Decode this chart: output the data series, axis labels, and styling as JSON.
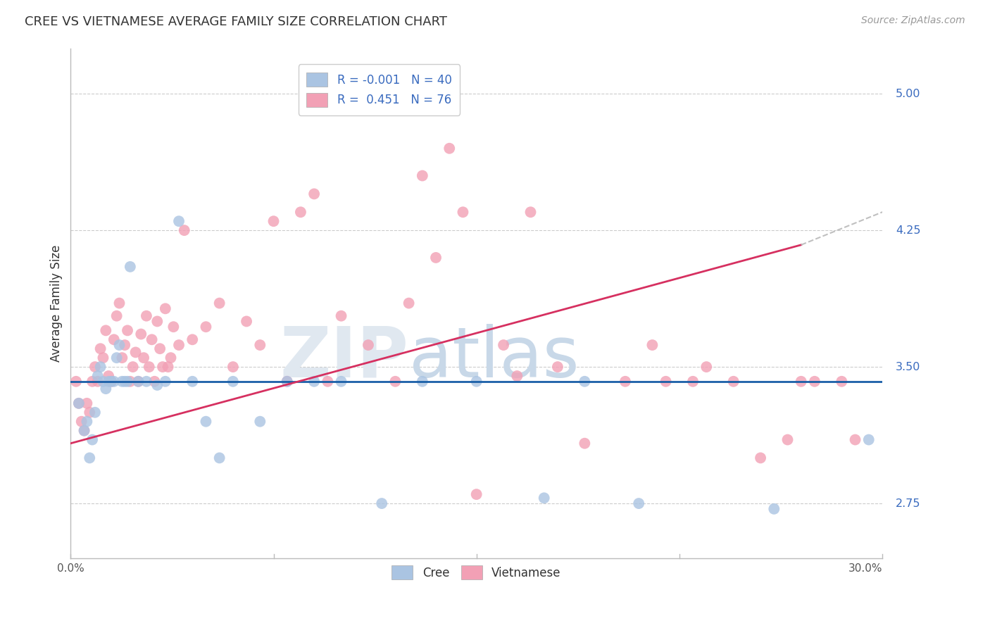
{
  "title": "CREE VS VIETNAMESE AVERAGE FAMILY SIZE CORRELATION CHART",
  "source": "Source: ZipAtlas.com",
  "ylabel": "Average Family Size",
  "yticks": [
    2.75,
    3.5,
    4.25,
    5.0
  ],
  "xlim": [
    0.0,
    30.0
  ],
  "ylim": [
    2.45,
    5.25
  ],
  "cree_color": "#aac4e2",
  "viet_color": "#f2a0b5",
  "cree_line_color": "#1a5fa8",
  "viet_line_color": "#d63060",
  "cree_R": -0.001,
  "cree_N": 40,
  "viet_R": 0.451,
  "viet_N": 76,
  "cree_x": [
    0.3,
    0.5,
    0.6,
    0.7,
    0.8,
    0.9,
    1.0,
    1.1,
    1.2,
    1.3,
    1.4,
    1.5,
    1.6,
    1.7,
    1.8,
    1.9,
    2.0,
    2.1,
    2.2,
    2.5,
    2.8,
    3.2,
    3.5,
    4.0,
    4.5,
    5.0,
    5.5,
    6.0,
    7.0,
    8.0,
    9.0,
    10.0,
    11.5,
    13.0,
    15.0,
    17.5,
    19.0,
    21.0,
    26.0,
    29.5
  ],
  "cree_y": [
    3.3,
    3.15,
    3.2,
    3.0,
    3.1,
    3.25,
    3.45,
    3.5,
    3.42,
    3.38,
    3.42,
    3.42,
    3.42,
    3.55,
    3.62,
    3.42,
    3.42,
    3.42,
    4.05,
    3.42,
    3.42,
    3.4,
    3.42,
    4.3,
    3.42,
    3.2,
    3.0,
    3.42,
    3.2,
    3.42,
    3.42,
    3.42,
    2.75,
    3.42,
    3.42,
    2.78,
    3.42,
    2.75,
    2.72,
    3.1
  ],
  "viet_x": [
    0.2,
    0.3,
    0.4,
    0.5,
    0.6,
    0.7,
    0.8,
    0.9,
    1.0,
    1.1,
    1.2,
    1.3,
    1.4,
    1.5,
    1.6,
    1.7,
    1.8,
    1.9,
    2.0,
    2.1,
    2.2,
    2.3,
    2.4,
    2.5,
    2.6,
    2.7,
    2.8,
    2.9,
    3.0,
    3.1,
    3.2,
    3.3,
    3.4,
    3.5,
    3.6,
    3.7,
    3.8,
    4.0,
    4.2,
    4.5,
    5.0,
    5.5,
    6.0,
    6.5,
    7.0,
    7.5,
    8.0,
    8.5,
    9.0,
    9.5,
    10.0,
    11.0,
    12.0,
    13.0,
    14.0,
    15.0,
    16.5,
    18.0,
    20.5,
    21.5,
    23.0,
    24.5,
    25.5,
    26.5,
    27.5,
    28.5,
    13.5,
    14.5,
    17.0,
    19.0,
    22.0,
    23.5,
    27.0,
    29.0,
    16.0,
    12.5
  ],
  "viet_y": [
    3.42,
    3.3,
    3.2,
    3.15,
    3.3,
    3.25,
    3.42,
    3.5,
    3.42,
    3.6,
    3.55,
    3.7,
    3.45,
    3.42,
    3.65,
    3.78,
    3.85,
    3.55,
    3.62,
    3.7,
    3.42,
    3.5,
    3.58,
    3.42,
    3.68,
    3.55,
    3.78,
    3.5,
    3.65,
    3.42,
    3.75,
    3.6,
    3.5,
    3.82,
    3.5,
    3.55,
    3.72,
    3.62,
    4.25,
    3.65,
    3.72,
    3.85,
    3.5,
    3.75,
    3.62,
    4.3,
    3.42,
    4.35,
    4.45,
    3.42,
    3.78,
    3.62,
    3.42,
    4.55,
    4.7,
    2.8,
    3.45,
    3.5,
    3.42,
    3.62,
    3.42,
    3.42,
    3.0,
    3.1,
    3.42,
    3.42,
    4.1,
    4.35,
    4.35,
    3.08,
    3.42,
    3.5,
    3.42,
    3.1,
    3.62,
    3.85
  ],
  "cree_line_y0": 3.42,
  "cree_line_y1": 3.42,
  "viet_line_y0": 3.08,
  "viet_line_y1": 4.28,
  "viet_dash_x0": 27.0,
  "viet_dash_x1": 30.5,
  "viet_dash_y0": 4.17,
  "viet_dash_y1": 4.38
}
